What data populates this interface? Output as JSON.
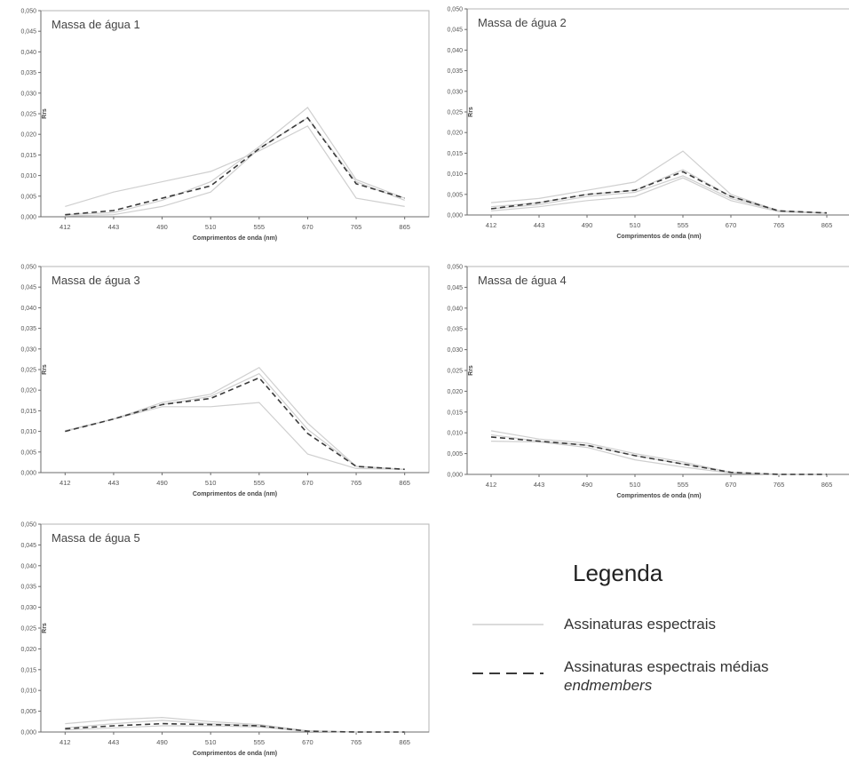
{
  "chart_data": [
    {
      "type": "line",
      "title": "Massa de água 1",
      "xlabel": "Comprimentos de onda (nm)",
      "ylabel": "Rrs",
      "ylim": [
        0,
        0.05
      ],
      "yticks": [
        "0,000",
        "0,005",
        "0,010",
        "0,015",
        "0,020",
        "0,025",
        "0,030",
        "0,035",
        "0,040",
        "0,045",
        "0,050"
      ],
      "categories": [
        "412",
        "443",
        "490",
        "510",
        "555",
        "670",
        "765",
        "865"
      ],
      "series": [
        {
          "values": [
            0.0025,
            0.006,
            0.0085,
            0.011,
            0.016,
            0.022,
            0.0045,
            0.0025
          ]
        },
        {
          "values": [
            0.0005,
            0.001,
            0.004,
            0.0085,
            0.017,
            0.0265,
            0.009,
            0.0045
          ]
        },
        {
          "values": [
            0.0002,
            0.0005,
            0.0025,
            0.006,
            0.0165,
            0.024,
            0.0085,
            0.004
          ]
        },
        {
          "values": [
            0.0005,
            0.0015,
            0.0045,
            0.0075,
            0.0165,
            0.024,
            0.008,
            0.0045
          ],
          "mean": true
        }
      ]
    },
    {
      "type": "line",
      "title": "Massa de água 2",
      "xlabel": "Comprimentos de onda (nm)",
      "ylabel": "Rrs",
      "ylim": [
        0,
        0.05
      ],
      "yticks": [
        "0,000",
        "0,005",
        "0,010",
        "0,015",
        "0,020",
        "0,025",
        "0,030",
        "0,035",
        "0,040",
        "0,045",
        "0,050"
      ],
      "categories": [
        "412",
        "443",
        "490",
        "510",
        "555",
        "670",
        "765",
        "865"
      ],
      "series": [
        {
          "values": [
            0.003,
            0.004,
            0.006,
            0.008,
            0.0155,
            0.005,
            0.001,
            0.0005
          ]
        },
        {
          "values": [
            0.002,
            0.003,
            0.005,
            0.006,
            0.011,
            0.0045,
            0.001,
            0.0005
          ]
        },
        {
          "values": [
            0.001,
            0.002,
            0.0035,
            0.0045,
            0.009,
            0.0035,
            0.0008,
            0.0004
          ]
        },
        {
          "values": [
            0.0015,
            0.0025,
            0.0045,
            0.0055,
            0.0095,
            0.004,
            0.001,
            0.0005
          ]
        },
        {
          "values": [
            0.0015,
            0.003,
            0.005,
            0.006,
            0.0105,
            0.0045,
            0.001,
            0.0005
          ],
          "mean": true
        }
      ]
    },
    {
      "type": "line",
      "title": "Massa de água 3",
      "xlabel": "Comprimentos de onda (nm)",
      "ylabel": "Rrs",
      "ylim": [
        0,
        0.05
      ],
      "yticks": [
        "0,000",
        "0,005",
        "0,010",
        "0,015",
        "0,020",
        "0,025",
        "0,030",
        "0,035",
        "0,040",
        "0,045",
        "0,050"
      ],
      "categories": [
        "412",
        "443",
        "490",
        "510",
        "555",
        "670",
        "765",
        "865"
      ],
      "series": [
        {
          "values": [
            0.01,
            0.013,
            0.016,
            0.016,
            0.017,
            0.0045,
            0.001,
            0.0008
          ]
        },
        {
          "values": [
            0.0102,
            0.013,
            0.017,
            0.019,
            0.0255,
            0.012,
            0.0015,
            0.0008
          ]
        },
        {
          "values": [
            0.01,
            0.013,
            0.0165,
            0.0185,
            0.024,
            0.0105,
            0.0015,
            0.0008
          ]
        },
        {
          "values": [
            0.01,
            0.013,
            0.0165,
            0.018,
            0.023,
            0.0095,
            0.0015,
            0.0008
          ],
          "mean": true
        }
      ]
    },
    {
      "type": "line",
      "title": "Massa de água 4",
      "xlabel": "Comprimentos de onda (nm)",
      "ylabel": "Rrs",
      "ylim": [
        0,
        0.05
      ],
      "yticks": [
        "0,000",
        "0,005",
        "0,010",
        "0,015",
        "0,020",
        "0,025",
        "0,030",
        "0,035",
        "0,040",
        "0,045",
        "0,050"
      ],
      "categories": [
        "412",
        "443",
        "490",
        "510",
        "555",
        "670",
        "765",
        "865"
      ],
      "series": [
        {
          "values": [
            0.0105,
            0.0085,
            0.0075,
            0.005,
            0.003,
            0.0005,
            0.0,
            0.0
          ]
        },
        {
          "values": [
            0.008,
            0.0078,
            0.0065,
            0.0035,
            0.0018,
            0.0003,
            0.0,
            0.0
          ]
        },
        {
          "values": [
            0.0095,
            0.008,
            0.007,
            0.0045,
            0.0025,
            0.0005,
            0.0,
            0.0
          ]
        },
        {
          "values": [
            0.009,
            0.008,
            0.007,
            0.0045,
            0.0025,
            0.0005,
            0.0,
            0.0
          ],
          "mean": true
        }
      ]
    },
    {
      "type": "line",
      "title": "Massa de água 5",
      "xlabel": "Comprimentos de onda (nm)",
      "ylabel": "Rrs",
      "ylim": [
        0,
        0.05
      ],
      "yticks": [
        "0,000",
        "0,005",
        "0,010",
        "0,015",
        "0,020",
        "0,025",
        "0,030",
        "0,035",
        "0,040",
        "0,045",
        "0,050"
      ],
      "categories": [
        "412",
        "443",
        "490",
        "510",
        "555",
        "670",
        "765",
        "865"
      ],
      "series": [
        {
          "values": [
            0.002,
            0.003,
            0.0035,
            0.0025,
            0.0018,
            0.0003,
            0.0,
            0.0
          ]
        },
        {
          "values": [
            0.0005,
            0.001,
            0.0015,
            0.0015,
            0.0012,
            0.0002,
            0.0,
            0.0
          ]
        },
        {
          "values": [
            0.001,
            0.002,
            0.0028,
            0.002,
            0.0015,
            0.0002,
            0.0,
            0.0
          ]
        },
        {
          "values": [
            0.0008,
            0.0015,
            0.002,
            0.0018,
            0.0015,
            0.0002,
            0.0,
            0.0
          ],
          "mean": true
        }
      ]
    }
  ],
  "legend": {
    "title": "Legenda",
    "items": [
      {
        "label": "Assinaturas espectrais",
        "style": "solid"
      },
      {
        "label": "Assinaturas espectrais médias",
        "label_em": "endmembers",
        "style": "dashed"
      }
    ]
  },
  "colors": {
    "signature": "#cfcfcf",
    "mean": "#3a3a3a",
    "axis": "#6b6b6b",
    "frame": "#b5b5b5"
  }
}
